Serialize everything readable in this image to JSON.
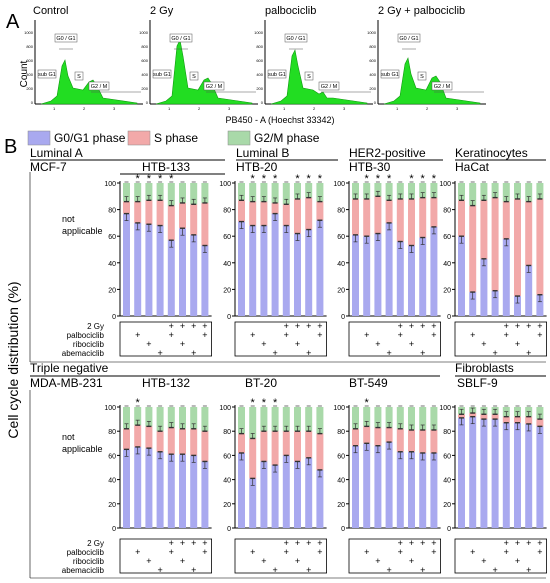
{
  "panel_a": {
    "letter": "A",
    "titles": [
      "Control",
      "2 Gy",
      "palbociclib",
      "2 Gy + palbociclib"
    ],
    "ylabel": "Count",
    "xlabel": "PB450 - A (Hoechst 33342)",
    "gate_labels": [
      "G0 / G1",
      "sub G1",
      "S",
      "G2 / M"
    ],
    "yticks": [
      "1000",
      "800",
      "600",
      "400",
      "200",
      "0"
    ],
    "xticks": [
      "1",
      "2",
      "3"
    ]
  },
  "panel_b": {
    "letter": "B",
    "ylabel": "Cell cycle distribution (%)",
    "legend": [
      {
        "label": "G0/G1 phase",
        "color": "#a9a9ef"
      },
      {
        "label": "S phase",
        "color": "#f2a9a9"
      },
      {
        "label": "G2/M phase",
        "color": "#a9d9a9"
      }
    ],
    "yticks": [
      "100",
      "80",
      "60",
      "40",
      "20",
      "0"
    ],
    "not_applicable": [
      "not",
      "applicable"
    ],
    "treatment_labels": [
      "2 Gy",
      "palbociclib",
      "ribociclib",
      "abemaciclib"
    ],
    "treatment_matrix": [
      [
        0,
        0,
        0,
        0,
        1,
        1,
        1,
        1
      ],
      [
        0,
        1,
        0,
        0,
        1,
        0,
        0,
        1
      ],
      [
        0,
        0,
        1,
        0,
        0,
        1,
        0,
        0
      ],
      [
        0,
        0,
        0,
        1,
        0,
        0,
        1,
        0
      ]
    ]
  },
  "chart_data": [
    {
      "type": "bar",
      "group": "Luminal A",
      "title": "HTB-133",
      "categories": [
        "1",
        "2",
        "3",
        "4",
        "5",
        "6",
        "7",
        "8"
      ],
      "ylim": [
        0,
        100
      ],
      "series": [
        {
          "name": "G0/G1 phase",
          "values": [
            77,
            70,
            69,
            68,
            57,
            66,
            61,
            53
          ]
        },
        {
          "name": "S phase",
          "values": [
            9,
            16,
            18,
            19,
            26,
            19,
            23,
            32
          ]
        },
        {
          "name": "G2/M phase",
          "values": [
            14,
            14,
            13,
            13,
            17,
            15,
            16,
            15
          ]
        }
      ],
      "significance": [
        false,
        true,
        true,
        true,
        true,
        false,
        false,
        false
      ]
    },
    {
      "type": "bar",
      "group": "Luminal B",
      "title": "HTB-20",
      "categories": [
        "1",
        "2",
        "3",
        "4",
        "5",
        "6",
        "7",
        "8"
      ],
      "ylim": [
        0,
        100
      ],
      "series": [
        {
          "name": "G0/G1 phase",
          "values": [
            71,
            68,
            68,
            77,
            68,
            62,
            65,
            72
          ]
        },
        {
          "name": "S phase",
          "values": [
            16,
            18,
            18,
            8,
            16,
            26,
            24,
            14
          ]
        },
        {
          "name": "G2/M phase",
          "values": [
            13,
            14,
            14,
            15,
            16,
            12,
            11,
            14
          ]
        }
      ],
      "significance": [
        false,
        true,
        true,
        true,
        false,
        true,
        true,
        true
      ]
    },
    {
      "type": "bar",
      "group": "HER2-positive",
      "title": "HTB-30",
      "categories": [
        "1",
        "2",
        "3",
        "4",
        "5",
        "6",
        "7",
        "8"
      ],
      "ylim": [
        0,
        100
      ],
      "series": [
        {
          "name": "G0/G1 phase",
          "values": [
            61,
            60,
            62,
            70,
            56,
            53,
            59,
            67
          ]
        },
        {
          "name": "S phase",
          "values": [
            27,
            28,
            28,
            17,
            32,
            35,
            30,
            22
          ]
        },
        {
          "name": "G2/M phase",
          "values": [
            12,
            12,
            10,
            13,
            12,
            12,
            11,
            11
          ]
        }
      ],
      "significance": [
        false,
        true,
        true,
        true,
        false,
        true,
        true,
        true
      ]
    },
    {
      "type": "bar",
      "group": "Keratinocytes",
      "title": "HaCat",
      "categories": [
        "1",
        "2",
        "3",
        "4",
        "5",
        "6",
        "7",
        "8"
      ],
      "ylim": [
        0,
        100
      ],
      "series": [
        {
          "name": "G0/G1 phase",
          "values": [
            60,
            18,
            43,
            19,
            58,
            15,
            38,
            16
          ]
        },
        {
          "name": "S phase",
          "values": [
            27,
            65,
            44,
            70,
            28,
            73,
            48,
            72
          ]
        },
        {
          "name": "G2/M phase",
          "values": [
            13,
            17,
            13,
            11,
            14,
            12,
            14,
            12
          ]
        }
      ],
      "significance": [
        false,
        false,
        false,
        false,
        false,
        false,
        false,
        false
      ]
    },
    {
      "type": "bar",
      "group": "Triple negative",
      "title": "HTB-132",
      "categories": [
        "1",
        "2",
        "3",
        "4",
        "5",
        "6",
        "7",
        "8"
      ],
      "ylim": [
        0,
        100
      ],
      "series": [
        {
          "name": "G0/G1 phase",
          "values": [
            65,
            67,
            66,
            63,
            61,
            61,
            60,
            55
          ]
        },
        {
          "name": "S phase",
          "values": [
            17,
            18,
            18,
            17,
            22,
            21,
            22,
            25
          ]
        },
        {
          "name": "G2/M phase",
          "values": [
            18,
            15,
            16,
            20,
            17,
            18,
            18,
            20
          ]
        }
      ],
      "significance": [
        false,
        true,
        false,
        false,
        false,
        false,
        false,
        false
      ]
    },
    {
      "type": "bar",
      "group": "Triple negative",
      "title": "BT-20",
      "categories": [
        "1",
        "2",
        "3",
        "4",
        "5",
        "6",
        "7",
        "8"
      ],
      "ylim": [
        0,
        100
      ],
      "series": [
        {
          "name": "G0/G1 phase",
          "values": [
            62,
            41,
            55,
            52,
            60,
            55,
            58,
            48
          ]
        },
        {
          "name": "S phase",
          "values": [
            16,
            33,
            25,
            28,
            20,
            25,
            22,
            30
          ]
        },
        {
          "name": "G2/M phase",
          "values": [
            22,
            26,
            20,
            20,
            20,
            20,
            20,
            22
          ]
        }
      ],
      "significance": [
        false,
        true,
        true,
        true,
        false,
        false,
        false,
        false
      ]
    },
    {
      "type": "bar",
      "group": "Triple negative",
      "title": "BT-549",
      "categories": [
        "1",
        "2",
        "3",
        "4",
        "5",
        "6",
        "7",
        "8"
      ],
      "ylim": [
        0,
        100
      ],
      "series": [
        {
          "name": "G0/G1 phase",
          "values": [
            68,
            70,
            68,
            71,
            63,
            63,
            62,
            62
          ]
        },
        {
          "name": "S phase",
          "values": [
            14,
            14,
            15,
            12,
            19,
            18,
            19,
            19
          ]
        },
        {
          "name": "G2/M phase",
          "values": [
            18,
            16,
            17,
            17,
            18,
            19,
            19,
            19
          ]
        }
      ],
      "significance": [
        false,
        true,
        false,
        false,
        false,
        false,
        false,
        false
      ]
    },
    {
      "type": "bar",
      "group": "Fibroblasts",
      "title": "SBLF-9",
      "categories": [
        "1",
        "2",
        "3",
        "4",
        "5",
        "6",
        "7",
        "8"
      ],
      "ylim": [
        0,
        100
      ],
      "series": [
        {
          "name": "G0/G1 phase",
          "values": [
            91,
            92,
            90,
            90,
            87,
            87,
            86,
            84
          ]
        },
        {
          "name": "S phase",
          "values": [
            3,
            3,
            4,
            4,
            5,
            5,
            6,
            6
          ]
        },
        {
          "name": "G2/M phase",
          "values": [
            6,
            5,
            6,
            6,
            8,
            8,
            8,
            10
          ]
        }
      ],
      "significance": [
        false,
        false,
        false,
        false,
        false,
        false,
        false,
        false
      ]
    }
  ],
  "group_headers": {
    "row1": [
      {
        "label": "Luminal A",
        "sub": "MCF-7"
      },
      {
        "label": "Luminal B"
      },
      {
        "label": "HER2-positive"
      },
      {
        "label": "Keratinocytes"
      }
    ],
    "row2": [
      {
        "label": "Triple negative",
        "sub": "MDA-MB-231"
      },
      {
        "label": "Fibroblasts"
      }
    ]
  }
}
